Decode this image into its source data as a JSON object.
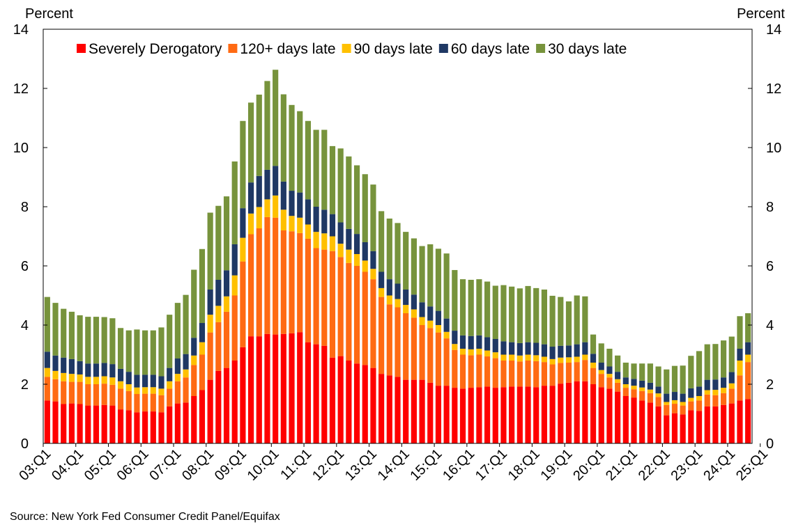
{
  "chart_data": {
    "type": "bar",
    "stacked": true,
    "ylabel_left": "Percent",
    "ylabel_right": "Percent",
    "ylim": [
      0,
      14
    ],
    "yticks": [
      0,
      2,
      4,
      6,
      8,
      10,
      12,
      14
    ],
    "xtick_labels": [
      "03:Q1",
      "04:Q1",
      "05:Q1",
      "06:Q1",
      "07:Q1",
      "08:Q1",
      "09:Q1",
      "10:Q1",
      "11:Q1",
      "12:Q1",
      "13:Q1",
      "14:Q1",
      "15:Q1",
      "16:Q1",
      "17:Q1",
      "18:Q1",
      "19:Q1",
      "20:Q1",
      "21:Q1",
      "22:Q1",
      "23:Q1",
      "24:Q1",
      "25:Q1"
    ],
    "legend_position": "top",
    "source": "Source: New York Fed Consumer Credit Panel/Equifax",
    "series": [
      {
        "name": "Severely Derogatory",
        "color": "#ff0000",
        "values": [
          1.45,
          1.42,
          1.33,
          1.35,
          1.33,
          1.28,
          1.28,
          1.3,
          1.28,
          1.15,
          1.12,
          1.05,
          1.08,
          1.08,
          1.05,
          1.25,
          1.35,
          1.38,
          1.6,
          1.8,
          2.15,
          2.45,
          2.55,
          2.8,
          3.25,
          3.62,
          3.62,
          3.7,
          3.68,
          3.7,
          3.72,
          3.76,
          3.42,
          3.35,
          3.3,
          2.9,
          2.95,
          2.8,
          2.7,
          2.65,
          2.55,
          2.35,
          2.3,
          2.25,
          2.15,
          2.15,
          2.15,
          2.05,
          1.95,
          1.95,
          1.88,
          1.85,
          1.88,
          1.9,
          1.92,
          1.88,
          1.9,
          1.92,
          1.92,
          1.92,
          1.9,
          1.95,
          1.95,
          2.02,
          2.05,
          2.1,
          2.1,
          2.0,
          1.9,
          1.85,
          1.75,
          1.6,
          1.55,
          1.45,
          1.38,
          1.25,
          0.95,
          1.02,
          0.98,
          1.12,
          1.1,
          1.25,
          1.25,
          1.3,
          1.35,
          1.45,
          1.5
        ]
      },
      {
        "name": "120+ days late",
        "color": "#ff6a13",
        "values": [
          0.8,
          0.75,
          0.77,
          0.73,
          0.75,
          0.72,
          0.72,
          0.72,
          0.7,
          0.7,
          0.65,
          0.62,
          0.6,
          0.6,
          0.58,
          0.6,
          0.75,
          0.85,
          1.05,
          1.2,
          1.6,
          1.65,
          1.9,
          2.2,
          2.9,
          3.45,
          3.65,
          3.95,
          3.95,
          3.5,
          3.45,
          3.35,
          3.5,
          3.25,
          3.25,
          3.6,
          3.35,
          3.3,
          3.3,
          3.15,
          3.0,
          2.6,
          2.4,
          2.35,
          2.25,
          2.1,
          1.85,
          1.85,
          1.8,
          1.6,
          1.28,
          1.15,
          1.1,
          1.1,
          1.02,
          1.0,
          0.9,
          0.88,
          0.85,
          0.88,
          0.88,
          0.8,
          0.72,
          0.7,
          0.68,
          0.65,
          0.72,
          0.55,
          0.45,
          0.38,
          0.3,
          0.28,
          0.28,
          0.32,
          0.32,
          0.32,
          0.35,
          0.32,
          0.3,
          0.3,
          0.35,
          0.4,
          0.38,
          0.4,
          0.5,
          0.85,
          1.25
        ]
      },
      {
        "name": "90 days late",
        "color": "#ffc000",
        "values": [
          0.3,
          0.28,
          0.28,
          0.27,
          0.25,
          0.25,
          0.25,
          0.25,
          0.25,
          0.25,
          0.23,
          0.22,
          0.22,
          0.22,
          0.22,
          0.25,
          0.25,
          0.27,
          0.32,
          0.42,
          0.6,
          0.55,
          0.52,
          0.68,
          0.8,
          0.7,
          0.72,
          0.6,
          0.75,
          0.7,
          0.52,
          0.52,
          0.48,
          0.55,
          0.55,
          0.5,
          0.45,
          0.45,
          0.4,
          0.38,
          0.35,
          0.3,
          0.3,
          0.28,
          0.28,
          0.28,
          0.27,
          0.25,
          0.25,
          0.22,
          0.2,
          0.2,
          0.2,
          0.2,
          0.2,
          0.2,
          0.2,
          0.2,
          0.2,
          0.2,
          0.2,
          0.18,
          0.18,
          0.18,
          0.18,
          0.18,
          0.18,
          0.18,
          0.13,
          0.12,
          0.12,
          0.12,
          0.12,
          0.12,
          0.12,
          0.12,
          0.1,
          0.12,
          0.12,
          0.12,
          0.15,
          0.15,
          0.18,
          0.18,
          0.18,
          0.5,
          0.25
        ]
      },
      {
        "name": "60 days late",
        "color": "#1f3864",
        "values": [
          0.55,
          0.52,
          0.52,
          0.5,
          0.45,
          0.45,
          0.45,
          0.45,
          0.45,
          0.42,
          0.42,
          0.43,
          0.42,
          0.42,
          0.42,
          0.45,
          0.52,
          0.52,
          0.6,
          0.65,
          0.85,
          0.88,
          0.88,
          1.05,
          1.0,
          1.05,
          1.05,
          1.0,
          1.0,
          0.95,
          0.85,
          0.85,
          0.85,
          0.85,
          0.8,
          0.75,
          0.72,
          0.7,
          0.68,
          0.62,
          0.6,
          0.55,
          0.55,
          0.52,
          0.52,
          0.5,
          0.5,
          0.48,
          0.48,
          0.45,
          0.45,
          0.45,
          0.45,
          0.45,
          0.45,
          0.45,
          0.45,
          0.42,
          0.42,
          0.42,
          0.42,
          0.42,
          0.42,
          0.4,
          0.4,
          0.42,
          0.42,
          0.3,
          0.25,
          0.25,
          0.25,
          0.23,
          0.23,
          0.23,
          0.23,
          0.23,
          0.28,
          0.28,
          0.28,
          0.32,
          0.32,
          0.35,
          0.35,
          0.35,
          0.38,
          0.4,
          0.42
        ]
      },
      {
        "name": "30 days late",
        "color": "#77933c",
        "values": [
          1.85,
          1.78,
          1.65,
          1.6,
          1.55,
          1.58,
          1.58,
          1.55,
          1.55,
          1.38,
          1.4,
          1.53,
          1.5,
          1.5,
          1.65,
          1.8,
          1.88,
          2.0,
          2.3,
          2.5,
          2.6,
          2.5,
          2.5,
          2.8,
          2.95,
          2.7,
          2.75,
          3.0,
          3.25,
          2.95,
          2.9,
          2.75,
          2.65,
          2.6,
          2.7,
          2.3,
          2.5,
          2.45,
          2.32,
          2.3,
          2.25,
          2.05,
          2.05,
          2.05,
          1.95,
          1.9,
          1.9,
          2.1,
          2.1,
          2.2,
          2.05,
          1.9,
          1.9,
          1.9,
          1.88,
          1.8,
          1.9,
          1.88,
          1.85,
          1.9,
          1.85,
          1.85,
          1.72,
          1.65,
          1.49,
          1.65,
          1.55,
          0.65,
          0.65,
          0.6,
          0.55,
          0.5,
          0.52,
          0.58,
          0.65,
          0.68,
          0.82,
          0.88,
          0.95,
          1.1,
          1.2,
          1.2,
          1.2,
          1.25,
          1.2,
          1.1,
          0.98
        ]
      }
    ]
  }
}
